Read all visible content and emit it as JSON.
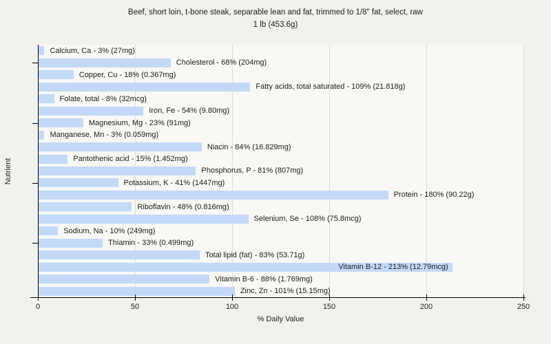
{
  "header": {
    "title_line1": "Beef, short loin, t-bone steak, separable lean and fat, trimmed to 1/8\" fat, select, raw",
    "title_line2": "1 lb (453.6g)"
  },
  "chart_data": {
    "type": "bar",
    "orientation": "horizontal",
    "title": "Beef, short loin, t-bone steak, separable lean and fat, trimmed to 1/8\" fat, select, raw",
    "subtitle": "1 lb (453.6g)",
    "xlabel": "% Daily Value",
    "ylabel": "Nutrient",
    "xlim": [
      0,
      250
    ],
    "xticks": [
      0,
      50,
      100,
      150,
      200,
      250
    ],
    "grid": "vertical",
    "legend": "none",
    "bar_color": "#c3d9f8",
    "axis_color": "#000000",
    "grid_color": "#dbdbd8",
    "background_color": "#f1f1ee",
    "plot_background_color": "#f8f8f5",
    "ytick_rows": [
      2,
      7,
      12,
      17
    ],
    "categories": [
      "Calcium, Ca",
      "Cholesterol",
      "Copper, Cu",
      "Fatty acids, total saturated",
      "Folate, total",
      "Iron, Fe",
      "Magnesium, Mg",
      "Manganese, Mn",
      "Niacin",
      "Pantothenic acid",
      "Phosphorus, P",
      "Potassium, K",
      "Protein",
      "Riboflavin",
      "Selenium, Se",
      "Sodium, Na",
      "Thiamin",
      "Total lipid (fat)",
      "Vitamin B-12",
      "Vitamin B-6",
      "Zinc, Zn"
    ],
    "values": [
      3,
      68,
      18,
      109,
      8,
      54,
      23,
      3,
      84,
      15,
      81,
      41,
      180,
      48,
      108,
      10,
      33,
      83,
      213,
      88,
      101
    ],
    "amounts": [
      "27mg",
      "204mg",
      "0.367mg",
      "21.818g",
      "32mcg",
      "9.80mg",
      "91mg",
      "0.059mg",
      "16.829mg",
      "1.452mg",
      "807mg",
      "1447mg",
      "90.22g",
      "0.816mg",
      "75.8mcg",
      "249mg",
      "0.499mg",
      "53.71g",
      "12.79mcg",
      "1.769mg",
      "15.15mg"
    ],
    "labels": [
      "Calcium, Ca - 3% (27mg)",
      "Cholesterol - 68% (204mg)",
      "Copper, Cu - 18% (0.367mg)",
      "Fatty acids, total saturated - 109% (21.818g)",
      "Folate, total - 8% (32mcg)",
      "Iron, Fe - 54% (9.80mg)",
      "Magnesium, Mg - 23% (91mg)",
      "Manganese, Mn - 3% (0.059mg)",
      "Niacin - 84% (16.829mg)",
      "Pantothenic acid - 15% (1.452mg)",
      "Phosphorus, P - 81% (807mg)",
      "Potassium, K - 41% (1447mg)",
      "Protein - 180% (90.22g)",
      "Riboflavin - 48% (0.816mg)",
      "Selenium, Se - 108% (75.8mcg)",
      "Sodium, Na - 10% (249mg)",
      "Thiamin - 33% (0.499mg)",
      "Total lipid (fat) - 83% (53.71g)",
      "Vitamin B-12 - 213% (12.79mcg)",
      "Vitamin B-6 - 88% (1.769mg)",
      "Zinc, Zn - 101% (15.15mg)"
    ]
  }
}
